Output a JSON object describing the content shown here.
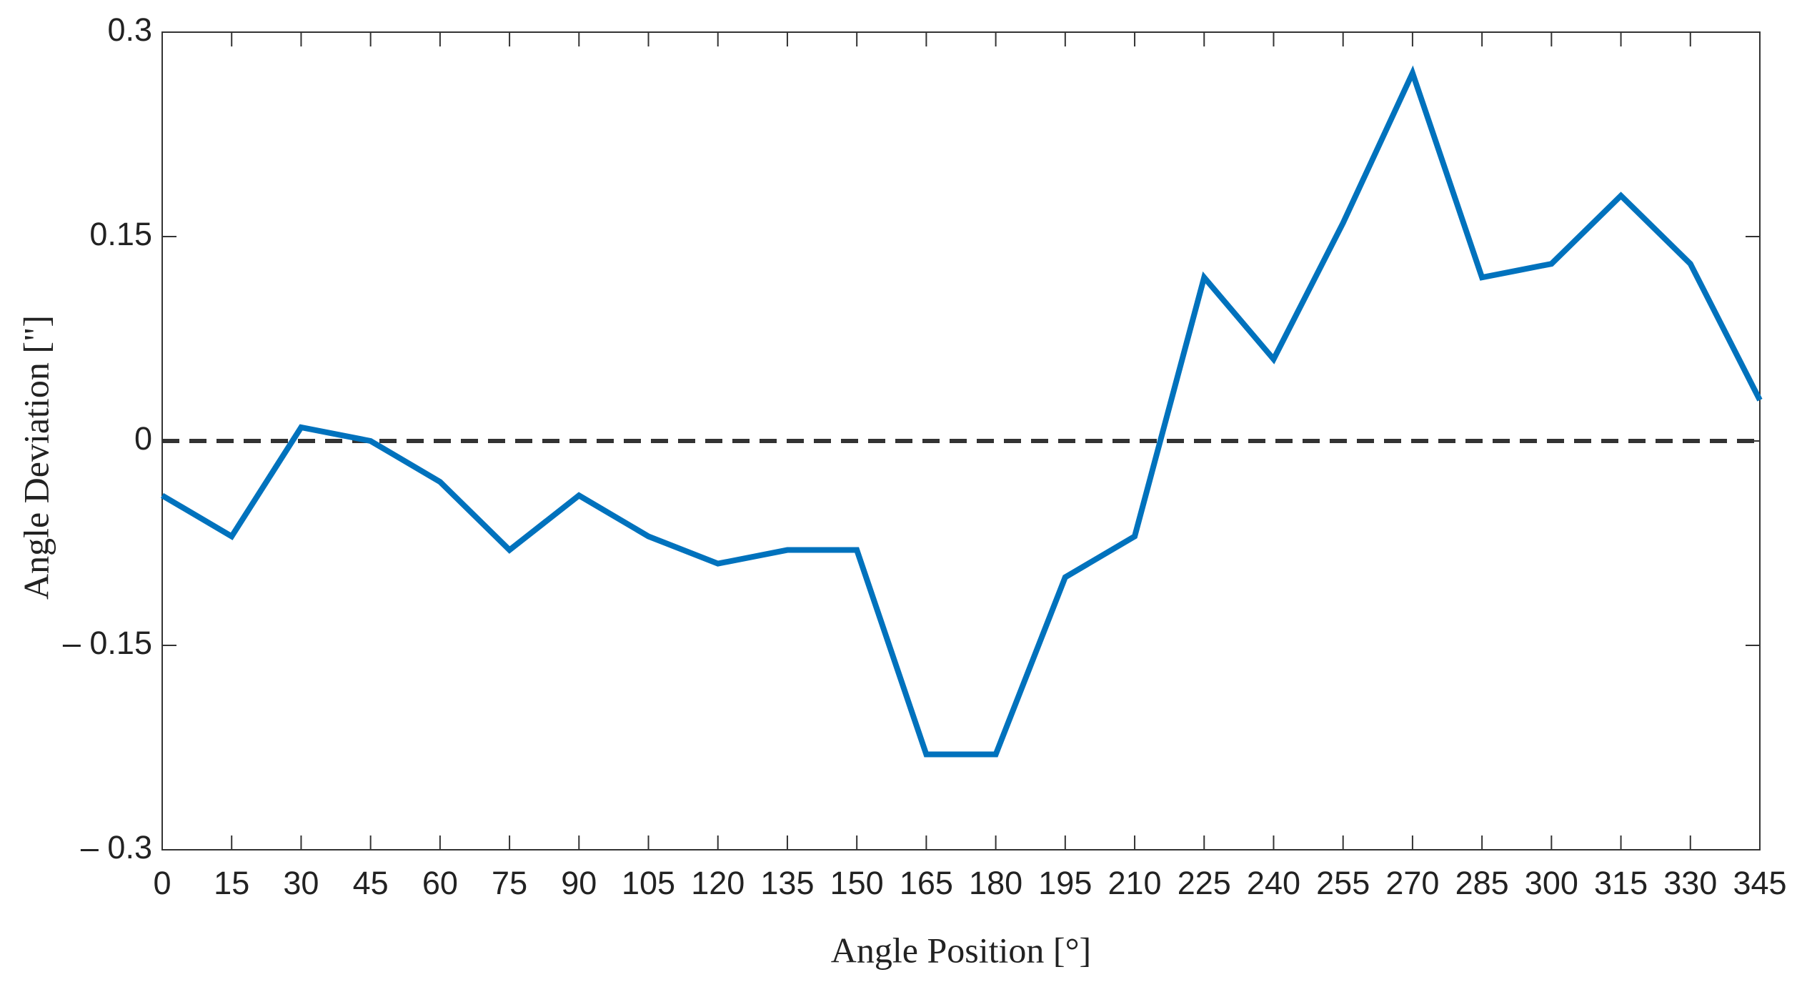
{
  "chart_data": {
    "type": "line",
    "x_label": "Angle Position [°]",
    "y_label": "Angle Deviation [\"]",
    "x": [
      0,
      15,
      30,
      45,
      60,
      75,
      90,
      105,
      120,
      135,
      150,
      165,
      180,
      195,
      210,
      225,
      240,
      255,
      270,
      285,
      300,
      315,
      330,
      345
    ],
    "series": [
      {
        "color": "#0072bd",
        "values": [
          -0.04,
          -0.07,
          0.01,
          0,
          -0.03,
          -0.08,
          -0.04,
          -0.07,
          -0.09,
          -0.08,
          -0.08,
          -0.23,
          -0.23,
          -0.1,
          -0.07,
          0.12,
          0.06,
          0.16,
          0.27,
          0.12,
          0.13,
          0.18,
          0.13,
          0.03
        ]
      }
    ],
    "xlim": [
      0,
      345
    ],
    "xticks": [
      0,
      15,
      30,
      45,
      60,
      75,
      90,
      105,
      120,
      135,
      150,
      165,
      180,
      195,
      210,
      225,
      240,
      255,
      270,
      285,
      300,
      315,
      330,
      345
    ],
    "ylim": [
      -0.3,
      0.3
    ],
    "yticks": [
      {
        "value": -0.3,
        "label": "– 0.3"
      },
      {
        "value": -0.15,
        "label": "– 0.15"
      },
      0,
      0.15,
      0.3
    ],
    "reference_line": {
      "y": 0,
      "style": "dashed",
      "color": "#333333"
    },
    "grid": false
  }
}
